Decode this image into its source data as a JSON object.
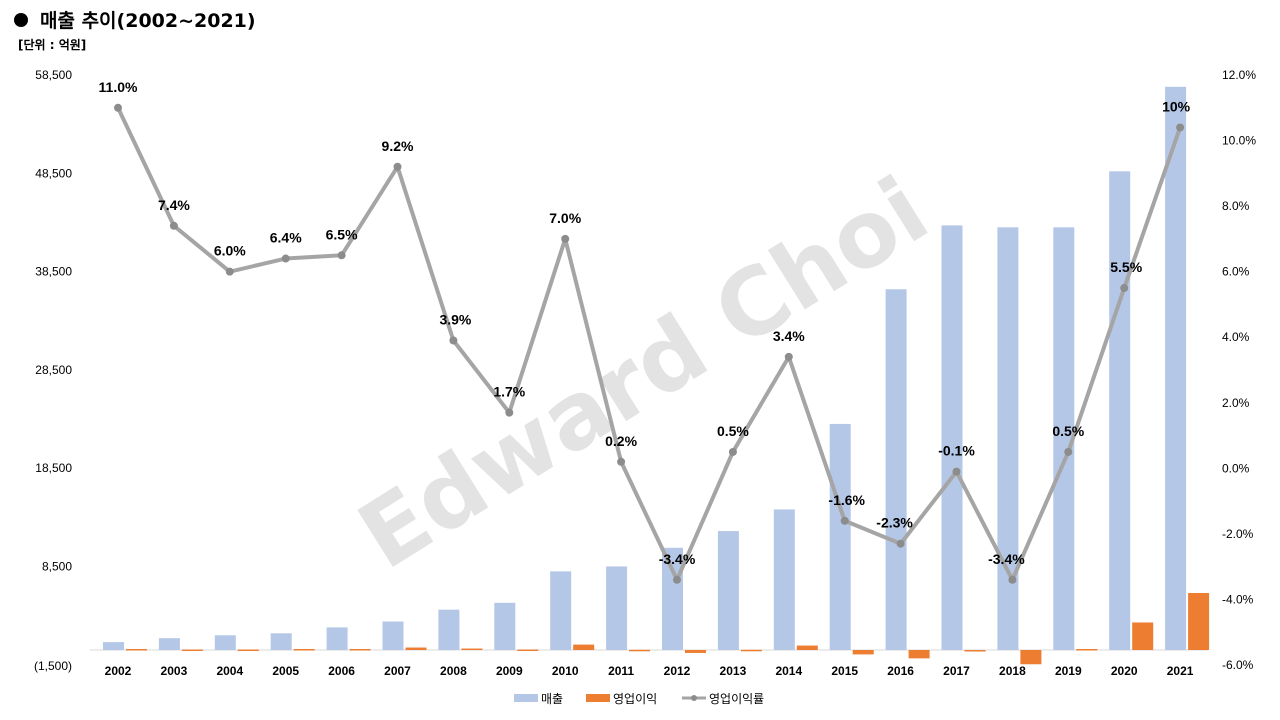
{
  "header": {
    "bullet_icon": "filled-circle-bullet",
    "title": "매출 추이(2002~2021)",
    "unit": "[단위 : 억원]"
  },
  "watermark": "Edward Choi",
  "chart_data": {
    "type": "bar+line",
    "categories": [
      "2002",
      "2003",
      "2004",
      "2005",
      "2006",
      "2007",
      "2008",
      "2009",
      "2010",
      "2011",
      "2012",
      "2013",
      "2014",
      "2015",
      "2016",
      "2017",
      "2018",
      "2019",
      "2020",
      "2021"
    ],
    "series": [
      {
        "name": "매출",
        "type": "bar",
        "axis": "left",
        "color": "#B4C7E7",
        "values": [
          800,
          1200,
          1500,
          1700,
          2300,
          2900,
          4100,
          4800,
          8000,
          8500,
          10400,
          12100,
          14300,
          23000,
          36700,
          43200,
          43000,
          43000,
          48700,
          57300
        ]
      },
      {
        "name": "영업이익",
        "type": "bar",
        "axis": "left",
        "color": "#ED7D31",
        "values": [
          100,
          50,
          50,
          100,
          100,
          250,
          150,
          50,
          550,
          20,
          -300,
          20,
          450,
          -450,
          -850,
          -100,
          -1450,
          100,
          2800,
          5800
        ]
      },
      {
        "name": "영업이익률",
        "type": "line",
        "axis": "right",
        "color": "#A5A5A5",
        "values": [
          11.0,
          7.4,
          6.0,
          6.4,
          6.5,
          9.2,
          3.9,
          1.7,
          7.0,
          0.2,
          -3.4,
          0.5,
          3.4,
          -1.6,
          -2.3,
          -0.1,
          -3.4,
          0.5,
          5.5,
          10.4
        ],
        "labels": [
          "11.0%",
          "7.4%",
          "6.0%",
          "6.4%",
          "6.5%",
          "9.2%",
          "3.9%",
          "1.7%",
          "7.0%",
          "0.2%",
          "-3.4%",
          "0.5%",
          "3.4%",
          "-1.6%",
          "-2.3%",
          "-0.1%",
          "-3.4%",
          "0.5%",
          "5.5%",
          "10%"
        ]
      }
    ],
    "y_left": {
      "ylim": [
        -1500,
        58500
      ],
      "ticks": [
        58500,
        48500,
        38500,
        28500,
        18500,
        8500,
        -1500
      ],
      "tick_labels": [
        "58,500",
        "48,500",
        "38,500",
        "28,500",
        "18,500",
        "8,500",
        "(1,500)"
      ]
    },
    "y_right": {
      "ylim": [
        -6,
        12
      ],
      "ticks": [
        12,
        10,
        8,
        6,
        4,
        2,
        0,
        -2,
        -4,
        -6
      ],
      "tick_labels": [
        "12.0%",
        "10.0%",
        "8.0%",
        "6.0%",
        "4.0%",
        "2.0%",
        "0.0%",
        "-2.0%",
        "-4.0%",
        "-6.0%"
      ]
    },
    "grid": false,
    "legend_position": "bottom-center"
  }
}
